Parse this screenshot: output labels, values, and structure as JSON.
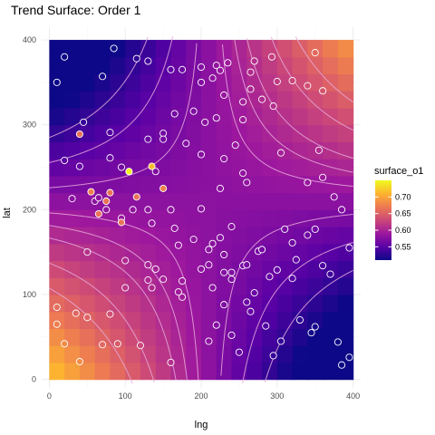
{
  "chart_data": {
    "type": "heatmap",
    "title": "Trend Surface: Order 1",
    "xlabel": "lng",
    "ylabel": "lat",
    "xlim": [
      -10,
      410
    ],
    "ylim": [
      -10,
      415
    ],
    "x_ticks": [
      0,
      100,
      200,
      300,
      400
    ],
    "y_ticks": [
      0,
      100,
      200,
      300,
      400
    ],
    "grid": true,
    "surface": {
      "extent_x": [
        0,
        400
      ],
      "extent_y": [
        0,
        400
      ],
      "cell_size": 20,
      "center": [
        211,
        211
      ],
      "base": 0.58,
      "coef_xy": 3.2e-06,
      "contour_levels": [
        0.53,
        0.55,
        0.57,
        0.59,
        0.6,
        0.61,
        0.63,
        0.65
      ],
      "contour_color": "#e6a9dc"
    },
    "legend": {
      "title": "surface_o1",
      "placement": "right",
      "range": [
        0.51,
        0.75
      ],
      "breaks": [
        0.55,
        0.6,
        0.65,
        0.7
      ],
      "break_labels": [
        "0.55",
        "0.60",
        "0.65",
        "0.70"
      ],
      "colors": [
        "#0d0887",
        "#5a01a5",
        "#9c179e",
        "#cb4779",
        "#ed7953",
        "#fdb42f",
        "#f0f921"
      ]
    },
    "points": [
      [
        20,
        380
      ],
      [
        10,
        350
      ],
      [
        85,
        390
      ],
      [
        70,
        357
      ],
      [
        115,
        378
      ],
      [
        130,
        375
      ],
      [
        160,
        365
      ],
      [
        175,
        365
      ],
      [
        200,
        368
      ],
      [
        220,
        370
      ],
      [
        235,
        373
      ],
      [
        200,
        350
      ],
      [
        215,
        355
      ],
      [
        225,
        364
      ],
      [
        265,
        362
      ],
      [
        270,
        375
      ],
      [
        293,
        380
      ],
      [
        300,
        351
      ],
      [
        320,
        352
      ],
      [
        340,
        346
      ],
      [
        350,
        385
      ],
      [
        360,
        340
      ],
      [
        255,
        327
      ],
      [
        265,
        342
      ],
      [
        255,
        306
      ],
      [
        280,
        330
      ],
      [
        295,
        322
      ],
      [
        165,
        313
      ],
      [
        190,
        316
      ],
      [
        205,
        303
      ],
      [
        230,
        335
      ],
      [
        220,
        308
      ],
      [
        245,
        276
      ],
      [
        305,
        267
      ],
      [
        355,
        270
      ],
      [
        150,
        290
      ],
      [
        150,
        283
      ],
      [
        180,
        278
      ],
      [
        200,
        265
      ],
      [
        230,
        260
      ],
      [
        255,
        243
      ],
      [
        260,
        232
      ],
      [
        340,
        232
      ],
      [
        45,
        303
      ],
      [
        80,
        291
      ],
      [
        130,
        283
      ],
      [
        20,
        258
      ],
      [
        40,
        251
      ],
      [
        80,
        261
      ],
      [
        95,
        250
      ],
      [
        140,
        245
      ],
      [
        225,
        225
      ],
      [
        30,
        213
      ],
      [
        60,
        210
      ],
      [
        65,
        214
      ],
      [
        75,
        200
      ],
      [
        95,
        190
      ],
      [
        110,
        200
      ],
      [
        130,
        200
      ],
      [
        135,
        184
      ],
      [
        160,
        200
      ],
      [
        200,
        201
      ],
      [
        165,
        178
      ],
      [
        170,
        158
      ],
      [
        190,
        165
      ],
      [
        210,
        153
      ],
      [
        215,
        160
      ],
      [
        225,
        167
      ],
      [
        240,
        180
      ],
      [
        310,
        177
      ],
      [
        320,
        161
      ],
      [
        340,
        170
      ],
      [
        350,
        177
      ],
      [
        375,
        215
      ],
      [
        360,
        238
      ],
      [
        385,
        200
      ],
      [
        395,
        155
      ],
      [
        50,
        150
      ],
      [
        100,
        140
      ],
      [
        130,
        117
      ],
      [
        135,
        108
      ],
      [
        140,
        130
      ],
      [
        175,
        116
      ],
      [
        210,
        135
      ],
      [
        230,
        126
      ],
      [
        240,
        126
      ],
      [
        255,
        134
      ],
      [
        275,
        151
      ],
      [
        280,
        153
      ],
      [
        325,
        141
      ],
      [
        360,
        134
      ],
      [
        10,
        85
      ],
      [
        35,
        78
      ],
      [
        50,
        73
      ],
      [
        80,
        77
      ],
      [
        100,
        108
      ],
      [
        130,
        135
      ],
      [
        150,
        118
      ],
      [
        200,
        130
      ],
      [
        215,
        108
      ],
      [
        230,
        88
      ],
      [
        240,
        118
      ],
      [
        260,
        91
      ],
      [
        270,
        102
      ],
      [
        290,
        121
      ],
      [
        300,
        129
      ],
      [
        320,
        119
      ],
      [
        370,
        124
      ],
      [
        10,
        65
      ],
      [
        20,
        42
      ],
      [
        40,
        21
      ],
      [
        70,
        41
      ],
      [
        90,
        42
      ],
      [
        120,
        40
      ],
      [
        160,
        20
      ],
      [
        175,
        97
      ],
      [
        210,
        45
      ],
      [
        220,
        64
      ],
      [
        240,
        52
      ],
      [
        250,
        32
      ],
      [
        265,
        80
      ],
      [
        285,
        63
      ],
      [
        295,
        28
      ],
      [
        305,
        45
      ],
      [
        330,
        70
      ],
      [
        345,
        55
      ],
      [
        350,
        62
      ],
      [
        380,
        44
      ],
      [
        385,
        17
      ],
      [
        395,
        26
      ],
      [
        170,
        103
      ],
      [
        230,
        147
      ],
      [
        260,
        135
      ]
    ],
    "highlight_points": [
      [
        105,
        245
      ],
      [
        135,
        251
      ],
      [
        40,
        289
      ],
      [
        55,
        221
      ],
      [
        75,
        210
      ],
      [
        80,
        220
      ],
      [
        65,
        195
      ],
      [
        95,
        185
      ],
      [
        150,
        225
      ],
      [
        115,
        215
      ]
    ]
  }
}
